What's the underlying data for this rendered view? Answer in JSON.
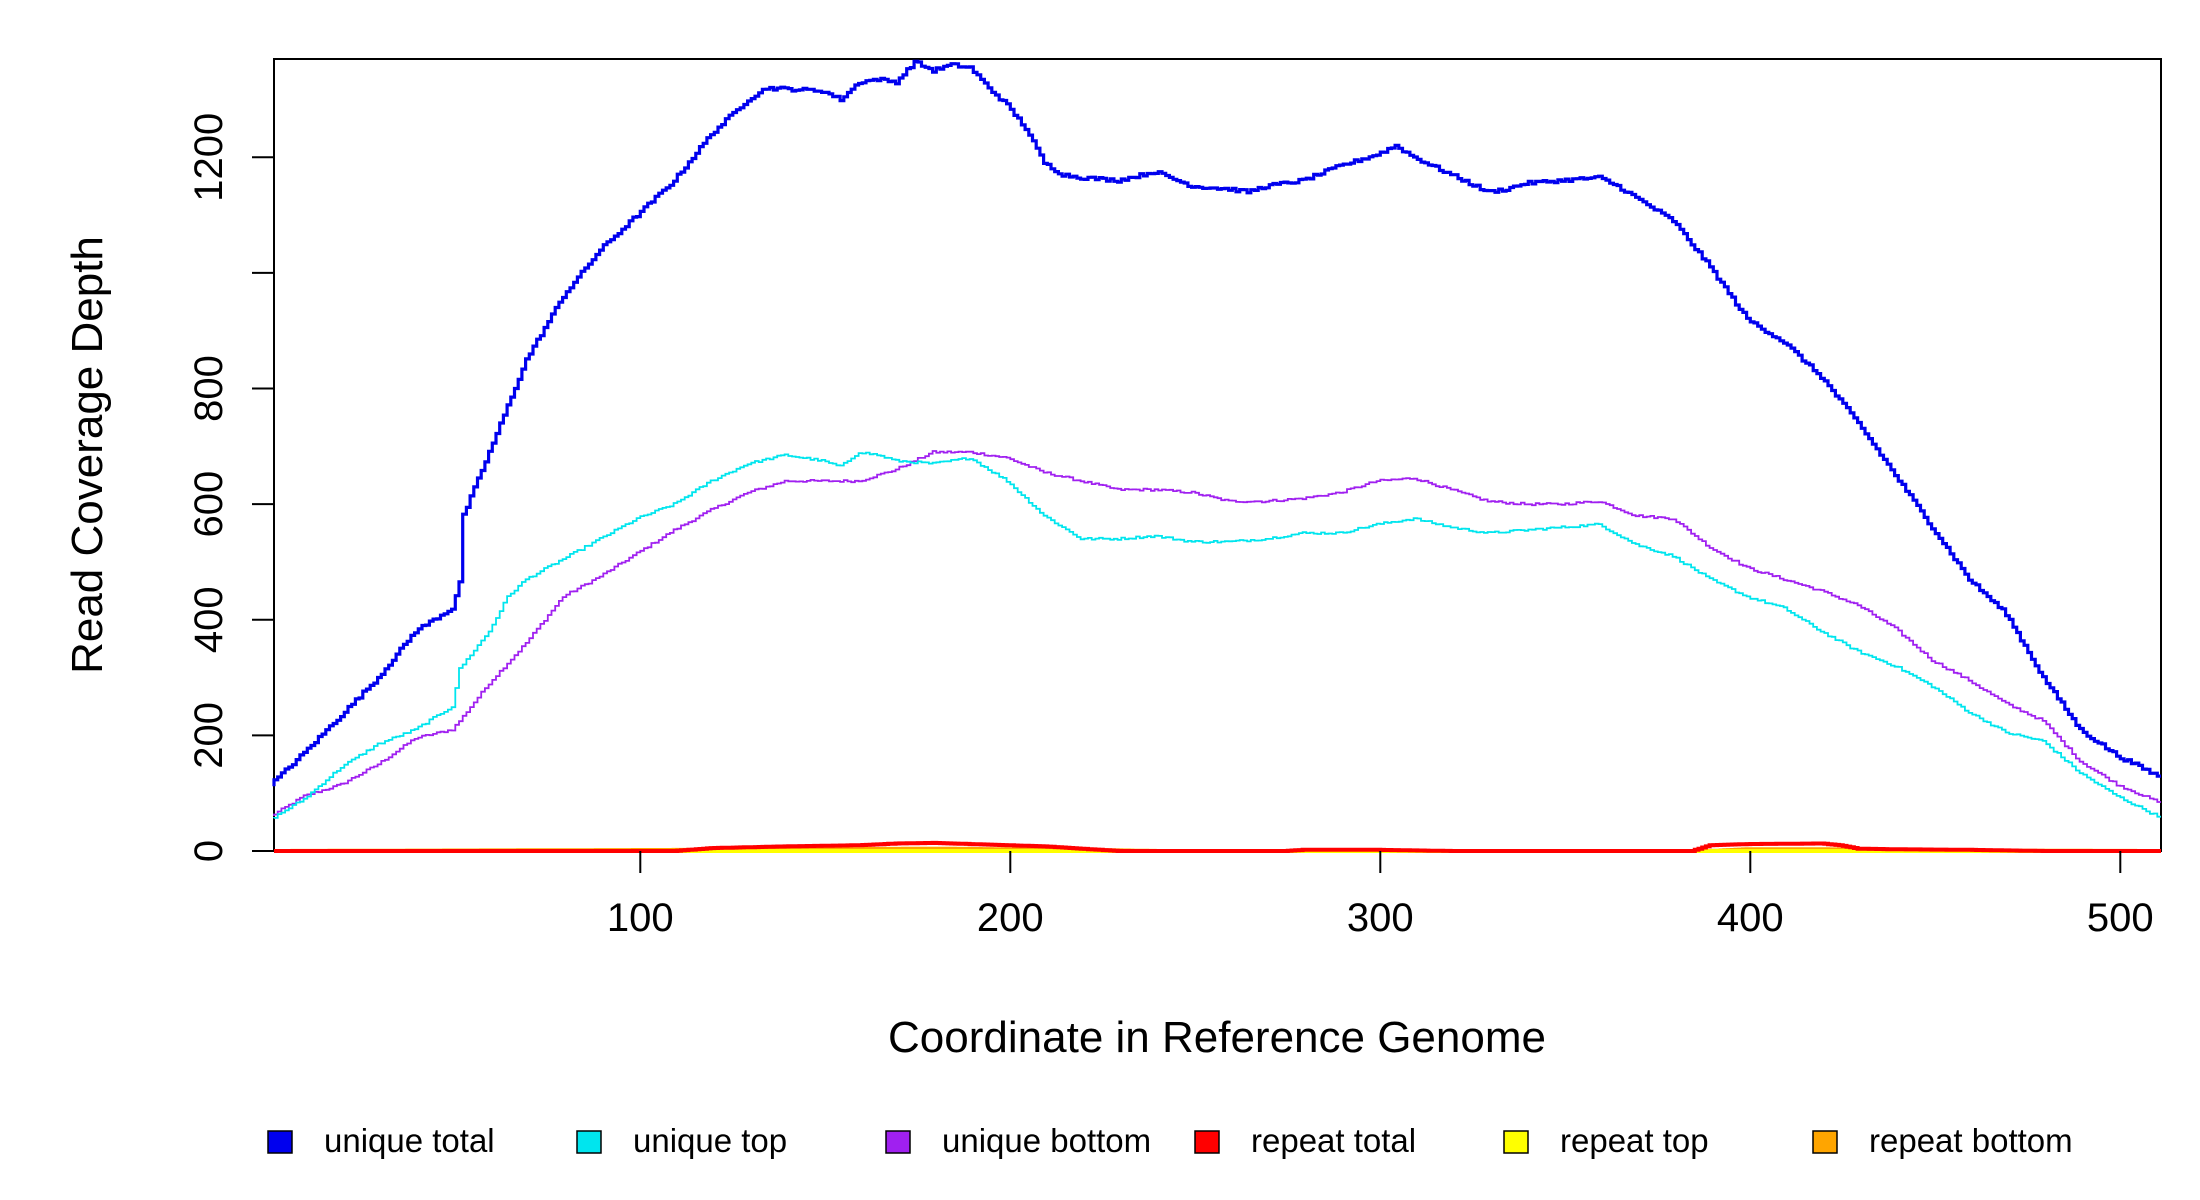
{
  "chart_data": {
    "type": "line",
    "title": "",
    "xlabel": "Coordinate in Reference Genome",
    "ylabel": "Read Coverage Depth",
    "xlim": [
      1,
      511
    ],
    "ylim": [
      0,
      1370
    ],
    "x_ticks": [
      100,
      200,
      300,
      400,
      500
    ],
    "y_ticks": [
      0,
      200,
      400,
      600,
      800,
      1000,
      1200
    ],
    "y_tick_labels": [
      "0",
      "200",
      "400",
      "600",
      "800",
      "",
      "1200"
    ],
    "grid": false,
    "legend_position": "bottom",
    "series": [
      {
        "name": "unique total",
        "color": "#0000ee",
        "points": [
          [
            1,
            115
          ],
          [
            10,
            170
          ],
          [
            20,
            235
          ],
          [
            30,
            300
          ],
          [
            40,
            380
          ],
          [
            50,
            420
          ],
          [
            52,
            465
          ],
          [
            53,
            580
          ],
          [
            60,
            690
          ],
          [
            70,
            850
          ],
          [
            80,
            960
          ],
          [
            90,
            1040
          ],
          [
            100,
            1100
          ],
          [
            110,
            1160
          ],
          [
            120,
            1240
          ],
          [
            130,
            1300
          ],
          [
            135,
            1320
          ],
          [
            150,
            1315
          ],
          [
            155,
            1300
          ],
          [
            160,
            1330
          ],
          [
            165,
            1335
          ],
          [
            170,
            1330
          ],
          [
            175,
            1365
          ],
          [
            180,
            1350
          ],
          [
            185,
            1360
          ],
          [
            190,
            1355
          ],
          [
            195,
            1320
          ],
          [
            200,
            1290
          ],
          [
            205,
            1250
          ],
          [
            210,
            1190
          ],
          [
            215,
            1170
          ],
          [
            220,
            1165
          ],
          [
            230,
            1160
          ],
          [
            240,
            1175
          ],
          [
            250,
            1150
          ],
          [
            260,
            1145
          ],
          [
            265,
            1140
          ],
          [
            270,
            1150
          ],
          [
            280,
            1160
          ],
          [
            290,
            1185
          ],
          [
            300,
            1205
          ],
          [
            305,
            1220
          ],
          [
            310,
            1200
          ],
          [
            320,
            1170
          ],
          [
            330,
            1140
          ],
          [
            335,
            1145
          ],
          [
            340,
            1155
          ],
          [
            350,
            1160
          ],
          [
            360,
            1165
          ],
          [
            365,
            1150
          ],
          [
            370,
            1130
          ],
          [
            380,
            1090
          ],
          [
            390,
            1010
          ],
          [
            400,
            920
          ],
          [
            410,
            880
          ],
          [
            420,
            820
          ],
          [
            430,
            740
          ],
          [
            440,
            650
          ],
          [
            450,
            560
          ],
          [
            460,
            470
          ],
          [
            470,
            410
          ],
          [
            480,
            300
          ],
          [
            490,
            210
          ],
          [
            500,
            165
          ],
          [
            511,
            130
          ]
        ]
      },
      {
        "name": "unique top",
        "color": "#00e5ee",
        "points": [
          [
            1,
            55
          ],
          [
            10,
            90
          ],
          [
            20,
            145
          ],
          [
            30,
            185
          ],
          [
            40,
            210
          ],
          [
            50,
            250
          ],
          [
            52,
            315
          ],
          [
            60,
            380
          ],
          [
            65,
            440
          ],
          [
            70,
            470
          ],
          [
            80,
            505
          ],
          [
            90,
            540
          ],
          [
            100,
            575
          ],
          [
            110,
            600
          ],
          [
            120,
            640
          ],
          [
            130,
            670
          ],
          [
            140,
            685
          ],
          [
            150,
            675
          ],
          [
            155,
            665
          ],
          [
            160,
            690
          ],
          [
            165,
            685
          ],
          [
            170,
            675
          ],
          [
            180,
            670
          ],
          [
            190,
            680
          ],
          [
            200,
            640
          ],
          [
            210,
            580
          ],
          [
            220,
            540
          ],
          [
            230,
            540
          ],
          [
            240,
            545
          ],
          [
            250,
            535
          ],
          [
            260,
            535
          ],
          [
            270,
            540
          ],
          [
            280,
            550
          ],
          [
            290,
            550
          ],
          [
            300,
            565
          ],
          [
            310,
            575
          ],
          [
            320,
            560
          ],
          [
            330,
            550
          ],
          [
            340,
            555
          ],
          [
            350,
            560
          ],
          [
            360,
            565
          ],
          [
            370,
            530
          ],
          [
            380,
            510
          ],
          [
            390,
            470
          ],
          [
            400,
            440
          ],
          [
            410,
            420
          ],
          [
            420,
            380
          ],
          [
            430,
            345
          ],
          [
            440,
            320
          ],
          [
            450,
            285
          ],
          [
            460,
            240
          ],
          [
            470,
            205
          ],
          [
            480,
            190
          ],
          [
            490,
            135
          ],
          [
            500,
            95
          ],
          [
            511,
            60
          ]
        ]
      },
      {
        "name": "unique bottom",
        "color": "#a020f0",
        "points": [
          [
            1,
            60
          ],
          [
            10,
            95
          ],
          [
            20,
            115
          ],
          [
            30,
            150
          ],
          [
            40,
            195
          ],
          [
            50,
            210
          ],
          [
            52,
            225
          ],
          [
            60,
            290
          ],
          [
            70,
            360
          ],
          [
            80,
            440
          ],
          [
            90,
            475
          ],
          [
            100,
            515
          ],
          [
            110,
            555
          ],
          [
            120,
            590
          ],
          [
            130,
            620
          ],
          [
            140,
            640
          ],
          [
            150,
            640
          ],
          [
            160,
            640
          ],
          [
            170,
            660
          ],
          [
            180,
            690
          ],
          [
            190,
            690
          ],
          [
            200,
            680
          ],
          [
            210,
            655
          ],
          [
            220,
            640
          ],
          [
            230,
            625
          ],
          [
            240,
            625
          ],
          [
            250,
            620
          ],
          [
            260,
            605
          ],
          [
            270,
            605
          ],
          [
            280,
            610
          ],
          [
            290,
            620
          ],
          [
            300,
            640
          ],
          [
            310,
            645
          ],
          [
            320,
            625
          ],
          [
            330,
            605
          ],
          [
            340,
            600
          ],
          [
            350,
            600
          ],
          [
            360,
            605
          ],
          [
            370,
            580
          ],
          [
            380,
            575
          ],
          [
            390,
            525
          ],
          [
            400,
            490
          ],
          [
            410,
            470
          ],
          [
            420,
            450
          ],
          [
            430,
            425
          ],
          [
            440,
            385
          ],
          [
            450,
            330
          ],
          [
            460,
            295
          ],
          [
            470,
            255
          ],
          [
            480,
            225
          ],
          [
            490,
            155
          ],
          [
            500,
            115
          ],
          [
            511,
            85
          ]
        ]
      },
      {
        "name": "repeat total",
        "color": "#ff0000",
        "points": [
          [
            1,
            0
          ],
          [
            110,
            0
          ],
          [
            120,
            5
          ],
          [
            140,
            8
          ],
          [
            160,
            10
          ],
          [
            170,
            13
          ],
          [
            180,
            14
          ],
          [
            190,
            12
          ],
          [
            200,
            10
          ],
          [
            210,
            8
          ],
          [
            220,
            4
          ],
          [
            230,
            0
          ],
          [
            275,
            0
          ],
          [
            280,
            2
          ],
          [
            300,
            2
          ],
          [
            320,
            0
          ],
          [
            385,
            0
          ],
          [
            390,
            10
          ],
          [
            400,
            12
          ],
          [
            420,
            13
          ],
          [
            425,
            10
          ],
          [
            430,
            4
          ],
          [
            440,
            3
          ],
          [
            460,
            2
          ],
          [
            480,
            0
          ],
          [
            511,
            0
          ]
        ]
      },
      {
        "name": "repeat top",
        "color": "#ffff00",
        "points": [
          [
            1,
            0
          ],
          [
            511,
            0
          ]
        ]
      },
      {
        "name": "repeat bottom",
        "color": "#ffa500",
        "points": [
          [
            1,
            0
          ],
          [
            120,
            2
          ],
          [
            180,
            4
          ],
          [
            220,
            2
          ],
          [
            240,
            0
          ],
          [
            390,
            0
          ],
          [
            400,
            3
          ],
          [
            420,
            3
          ],
          [
            440,
            1
          ],
          [
            511,
            0
          ]
        ]
      }
    ],
    "legend": [
      {
        "label": "unique total",
        "color": "#0000ee"
      },
      {
        "label": "unique top",
        "color": "#00e5ee"
      },
      {
        "label": "unique bottom",
        "color": "#a020f0"
      },
      {
        "label": "repeat total",
        "color": "#ff0000"
      },
      {
        "label": "repeat top",
        "color": "#ffff00"
      },
      {
        "label": "repeat bottom",
        "color": "#ffa500"
      }
    ]
  }
}
